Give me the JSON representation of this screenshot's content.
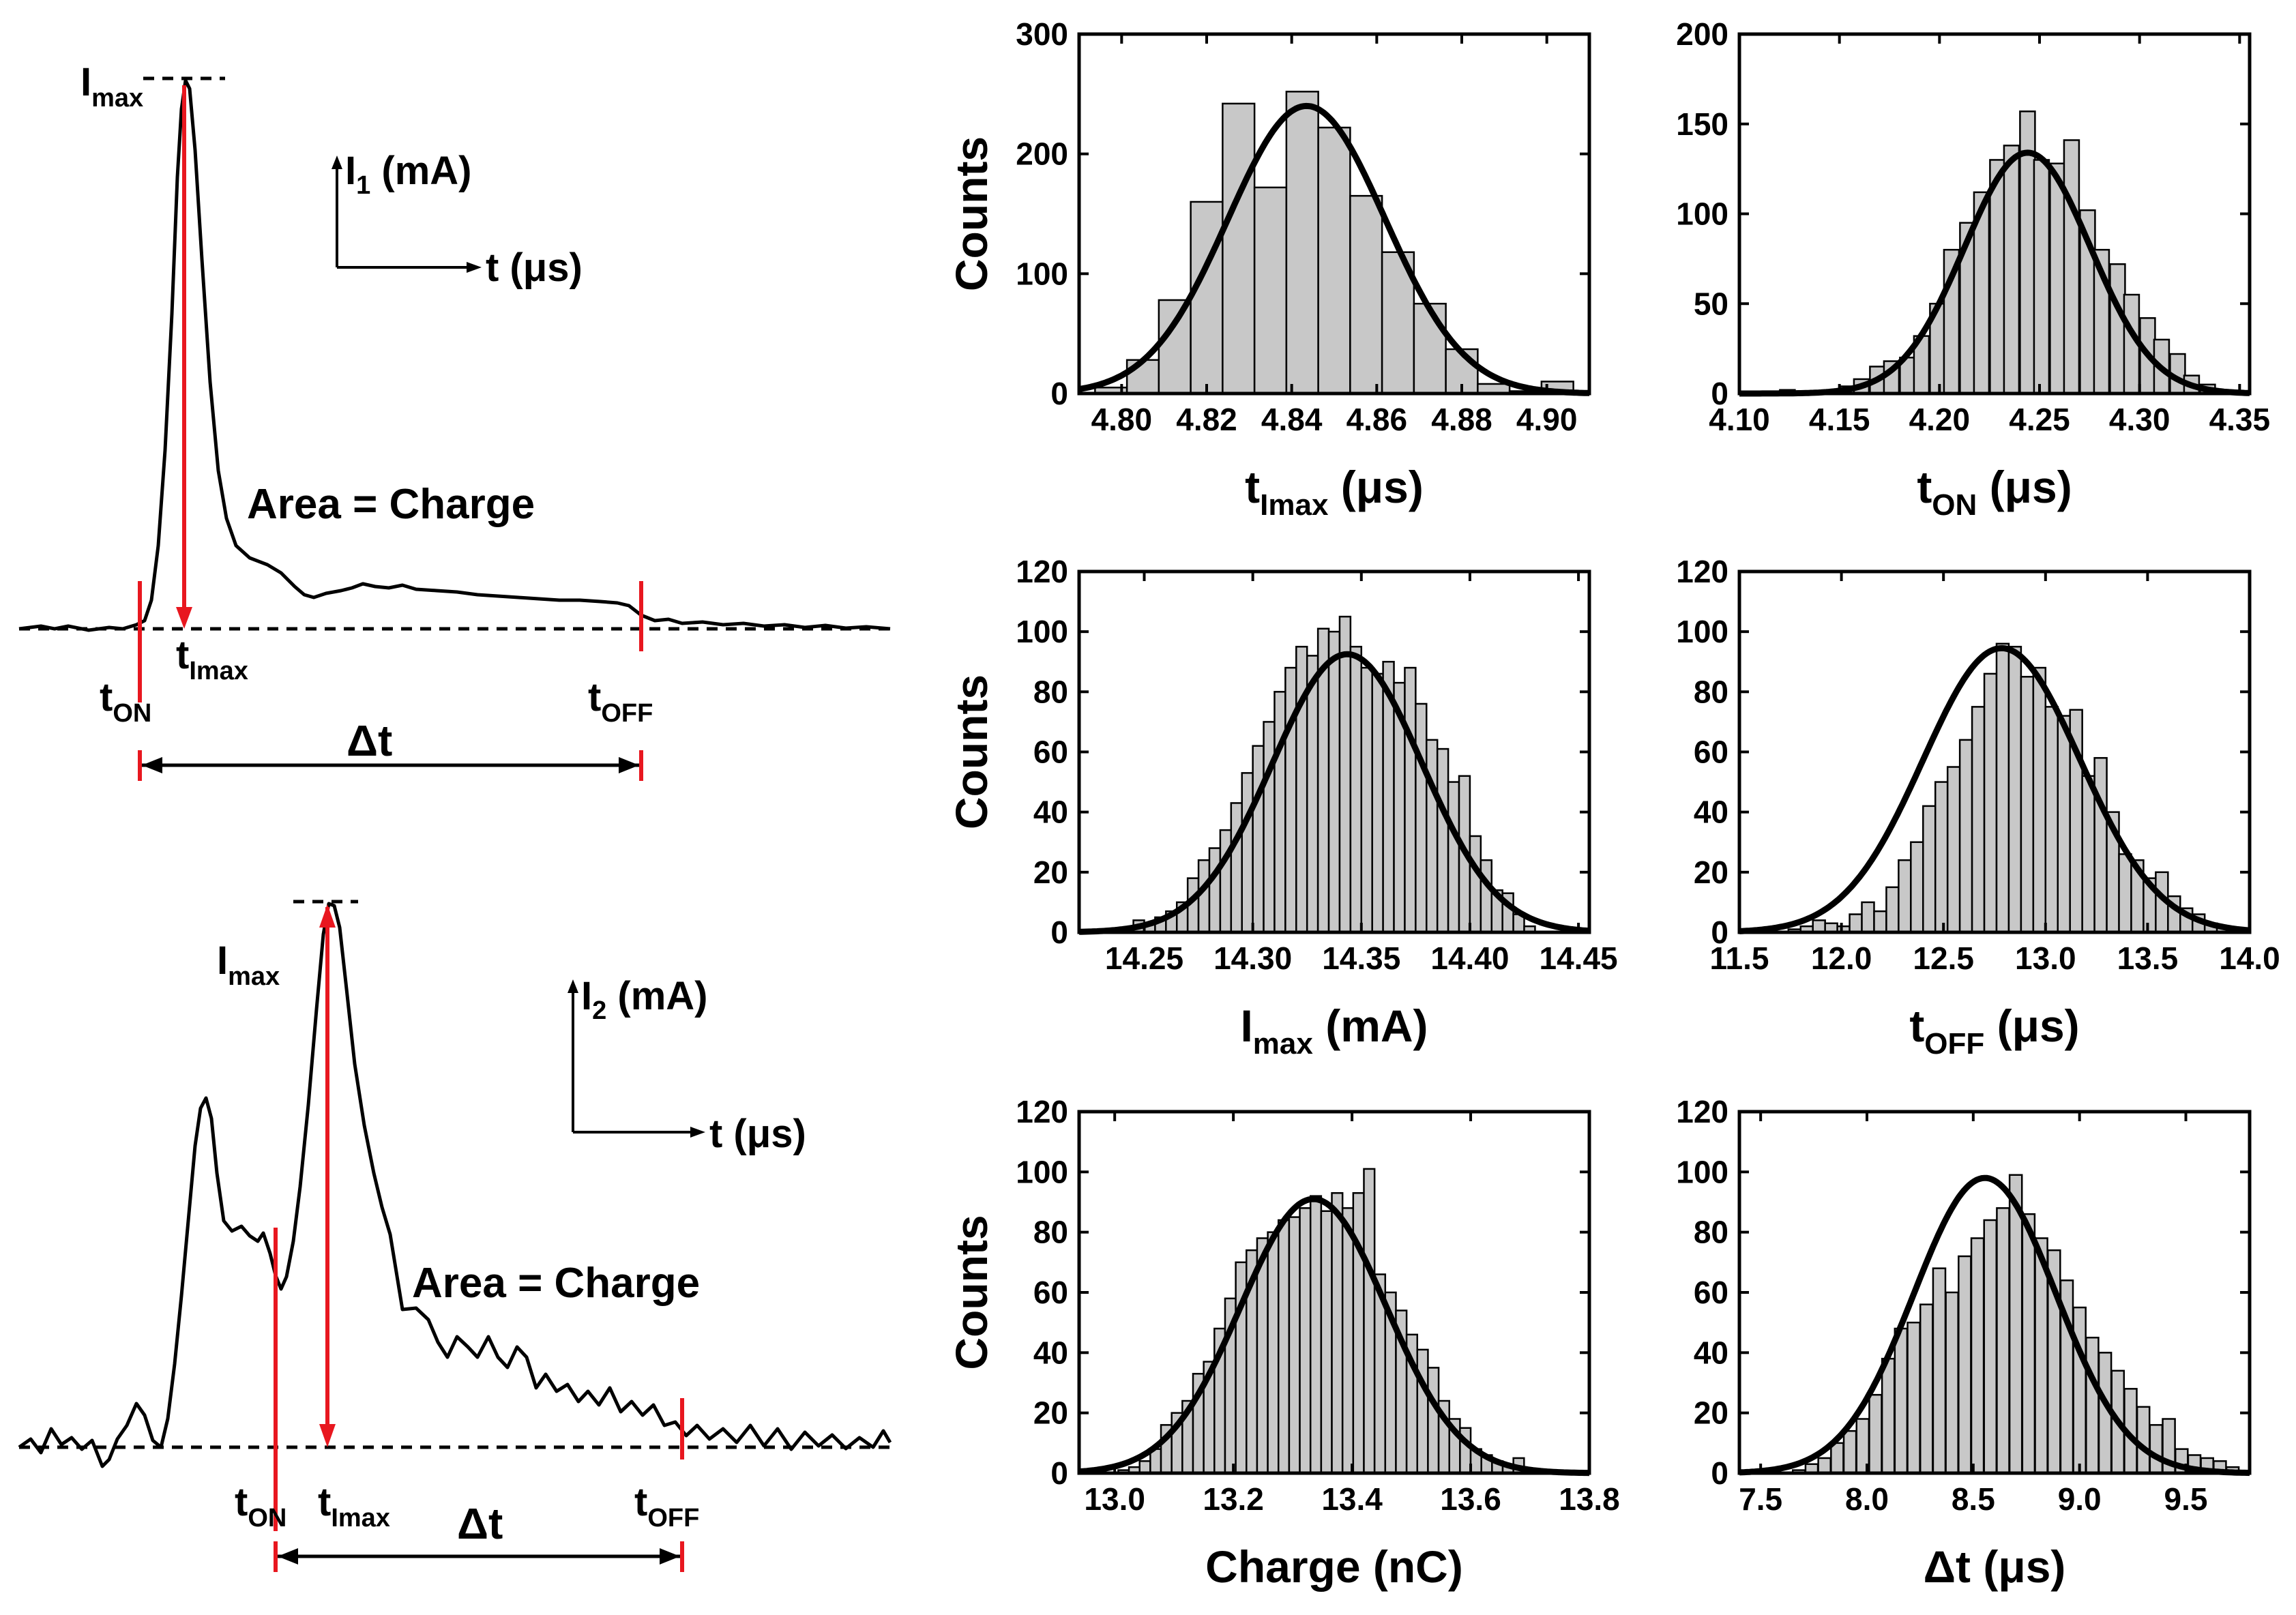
{
  "colors": {
    "ink": "#000000",
    "marker": "#e8171f",
    "bar": "#c8c8c8"
  },
  "pulse_panels": [
    {
      "i_label": "I",
      "i_sub": "1",
      "i_unit": " (mA)",
      "t_axis": "t (μs)",
      "peak_label": "I",
      "peak_sub": "max",
      "area_label": "Area = Charge",
      "ton_label": "t",
      "ton_sub": "ON",
      "tmax_label": "t",
      "tmax_sub": "Imax",
      "toff_label": "t",
      "toff_sub": "OFF",
      "dt_label": "Δt"
    },
    {
      "i_label": "I",
      "i_sub": "2",
      "i_unit": " (mA)",
      "t_axis": "t (μs)",
      "peak_label": "I",
      "peak_sub": "max",
      "area_label": "Area = Charge",
      "ton_label": "t",
      "ton_sub": "ON",
      "tmax_label": "t",
      "tmax_sub": "Imax",
      "toff_label": "t",
      "toff_sub": "OFF",
      "dt_label": "Δt"
    }
  ],
  "chart_data": [
    {
      "type": "bar",
      "xlabel": "t",
      "xlabel_sub": "Imax",
      "xlabel_tail": " (μs)",
      "ylabel": "Counts",
      "xlim": [
        4.79,
        4.91
      ],
      "ylim": [
        0,
        300
      ],
      "xticks": [
        "4.80",
        "4.82",
        "4.84",
        "4.86",
        "4.88",
        "4.90"
      ],
      "yticks": [
        "0",
        "100",
        "200",
        "300"
      ],
      "bin_width": 0.0075,
      "bin_centers": [
        4.7975,
        4.805,
        4.8125,
        4.82,
        4.8275,
        4.835,
        4.8425,
        4.85,
        4.8575,
        4.865,
        4.8725,
        4.88,
        4.8875,
        4.895,
        4.9025
      ],
      "values": [
        5,
        28,
        78,
        160,
        242,
        172,
        252,
        222,
        165,
        118,
        75,
        37,
        8,
        2,
        10
      ],
      "fit": {
        "mu": 4.8435,
        "sigma": 0.0185,
        "amplitude": 240
      }
    },
    {
      "type": "bar",
      "xlabel": "t",
      "xlabel_sub": "ON",
      "xlabel_tail": " (μs)",
      "ylabel": "",
      "xlim": [
        4.1,
        4.355
      ],
      "ylim": [
        0,
        200
      ],
      "xticks": [
        "4.10",
        "4.15",
        "4.20",
        "4.25",
        "4.30",
        "4.35"
      ],
      "yticks": [
        "0",
        "50",
        "100",
        "150",
        "200"
      ],
      "bin_width": 0.0075,
      "bin_centers": [
        4.124,
        4.139,
        4.154,
        4.161,
        4.169,
        4.176,
        4.184,
        4.191,
        4.199,
        4.206,
        4.214,
        4.221,
        4.229,
        4.236,
        4.244,
        4.251,
        4.259,
        4.266,
        4.274,
        4.281,
        4.289,
        4.296,
        4.304,
        4.311,
        4.319,
        4.326,
        4.334
      ],
      "values": [
        2,
        1,
        4,
        8,
        15,
        18,
        20,
        32,
        50,
        80,
        95,
        112,
        130,
        138,
        157,
        130,
        128,
        141,
        102,
        80,
        72,
        55,
        42,
        30,
        22,
        10,
        5
      ],
      "fit": {
        "mu": 4.244,
        "sigma": 0.0315,
        "amplitude": 134
      }
    },
    {
      "type": "bar",
      "xlabel": "I",
      "xlabel_sub": "max",
      "xlabel_tail": " (mA)",
      "ylabel": "Counts",
      "xlim": [
        4.22,
        4.455
      ],
      "xlim_offset": 10,
      "ylim": [
        0,
        120
      ],
      "xticks": [
        "14.25",
        "14.30",
        "14.35",
        "14.40",
        "14.45"
      ],
      "xtick_values": [
        14.25,
        14.3,
        14.35,
        14.4,
        14.45
      ],
      "yticks": [
        "0",
        "20",
        "40",
        "60",
        "80",
        "100",
        "120"
      ],
      "bin_width": 0.005,
      "bin_centers": [
        14.2475,
        14.2525,
        14.2575,
        14.2625,
        14.2675,
        14.2725,
        14.2775,
        14.2825,
        14.2875,
        14.2925,
        14.2975,
        14.3025,
        14.3075,
        14.3125,
        14.3175,
        14.3225,
        14.3275,
        14.3325,
        14.3375,
        14.3425,
        14.3475,
        14.3525,
        14.3575,
        14.3625,
        14.3675,
        14.3725,
        14.3775,
        14.3825,
        14.3875,
        14.3925,
        14.3975,
        14.4025,
        14.4075,
        14.4125,
        14.4175,
        14.4225,
        14.4275
      ],
      "values": [
        4,
        3,
        5,
        7,
        10,
        18,
        24,
        28,
        34,
        43,
        53,
        62,
        70,
        80,
        88,
        95,
        92,
        101,
        100,
        105,
        95,
        88,
        86,
        90,
        83,
        88,
        76,
        64,
        61,
        50,
        52,
        32,
        24,
        14,
        13,
        6,
        2
      ],
      "fit": {
        "mu": 14.3435,
        "sigma": 0.0345,
        "amplitude": 92.5
      }
    },
    {
      "type": "bar",
      "xlabel": "t",
      "xlabel_sub": "OFF",
      "xlabel_tail": " (μs)",
      "ylabel": "",
      "xlim": [
        11.5,
        14.0
      ],
      "ylim": [
        0,
        120
      ],
      "xticks": [
        "11.5",
        "12.0",
        "12.5",
        "13.0",
        "13.5",
        "14.0"
      ],
      "yticks": [
        "0",
        "20",
        "40",
        "60",
        "80",
        "100",
        "120"
      ],
      "bin_width": 0.06,
      "bin_centers": [
        11.77,
        11.83,
        11.89,
        11.95,
        12.01,
        12.07,
        12.13,
        12.19,
        12.25,
        12.31,
        12.37,
        12.43,
        12.49,
        12.55,
        12.61,
        12.67,
        12.73,
        12.79,
        12.85,
        12.91,
        12.97,
        13.03,
        13.09,
        13.15,
        13.21,
        13.27,
        13.33,
        13.39,
        13.45,
        13.51,
        13.57,
        13.63,
        13.69,
        13.75,
        13.81,
        13.87
      ],
      "values": [
        1,
        2,
        4,
        3,
        2,
        6,
        10,
        7,
        15,
        24,
        30,
        42,
        50,
        55,
        64,
        75,
        86,
        96,
        95,
        85,
        88,
        75,
        72,
        74,
        52,
        58,
        40,
        26,
        24,
        18,
        20,
        12,
        8,
        6,
        3,
        2
      ],
      "fit": {
        "mu": 12.785,
        "sigma": 0.385,
        "amplitude": 94.5
      }
    },
    {
      "type": "bar",
      "xlabel": "Charge (nC)",
      "xlabel_sub": "",
      "xlabel_tail": "",
      "ylabel": "Counts",
      "xlim": [
        12.94,
        13.8
      ],
      "ylim": [
        0,
        120
      ],
      "xticks": [
        "13.0",
        "13.2",
        "13.4",
        "13.6",
        "13.8"
      ],
      "yticks": [
        "0",
        "20",
        "40",
        "60",
        "80",
        "100",
        "120"
      ],
      "bin_width": 0.018,
      "bin_centers": [
        13.015,
        13.033,
        13.051,
        13.069,
        13.087,
        13.105,
        13.123,
        13.141,
        13.159,
        13.177,
        13.195,
        13.213,
        13.231,
        13.249,
        13.267,
        13.285,
        13.303,
        13.321,
        13.339,
        13.357,
        13.375,
        13.393,
        13.411,
        13.429,
        13.447,
        13.465,
        13.483,
        13.501,
        13.519,
        13.537,
        13.555,
        13.573,
        13.591,
        13.609,
        13.627,
        13.645,
        13.663,
        13.681,
        13.699
      ],
      "values": [
        1,
        2,
        4,
        8,
        16,
        20,
        24,
        33,
        37,
        48,
        58,
        70,
        74,
        78,
        80,
        84,
        85,
        88,
        92,
        87,
        93,
        88,
        93,
        101,
        66,
        60,
        54,
        46,
        41,
        35,
        24,
        18,
        15,
        8,
        6,
        4,
        3,
        5,
        1
      ],
      "fit": {
        "mu": 13.335,
        "sigma": 0.123,
        "amplitude": 91
      }
    },
    {
      "type": "bar",
      "xlabel": "Δt",
      "xlabel_sub": "",
      "xlabel_tail": " (μs)",
      "ylabel": "",
      "xlim": [
        7.4,
        9.8
      ],
      "ylim": [
        0,
        120
      ],
      "xticks": [
        "7.5",
        "8.0",
        "8.5",
        "9.0",
        "9.5"
      ],
      "yticks": [
        "0",
        "20",
        "40",
        "60",
        "80",
        "100",
        "120"
      ],
      "bin_width": 0.058,
      "bin_centers": [
        7.68,
        7.74,
        7.8,
        7.86,
        7.92,
        7.98,
        8.04,
        8.1,
        8.16,
        8.22,
        8.28,
        8.34,
        8.4,
        8.46,
        8.52,
        8.58,
        8.64,
        8.7,
        8.76,
        8.82,
        8.88,
        8.94,
        9.0,
        9.06,
        9.12,
        9.18,
        9.24,
        9.3,
        9.36,
        9.42,
        9.48,
        9.54,
        9.6,
        9.66,
        9.72
      ],
      "values": [
        1,
        3,
        5,
        10,
        14,
        18,
        26,
        38,
        48,
        50,
        56,
        68,
        60,
        72,
        78,
        84,
        88,
        99,
        86,
        78,
        74,
        64,
        55,
        45,
        40,
        34,
        28,
        22,
        16,
        18,
        8,
        6,
        5,
        4,
        2
      ],
      "fit": {
        "mu": 8.555,
        "sigma": 0.335,
        "amplitude": 98
      }
    }
  ]
}
